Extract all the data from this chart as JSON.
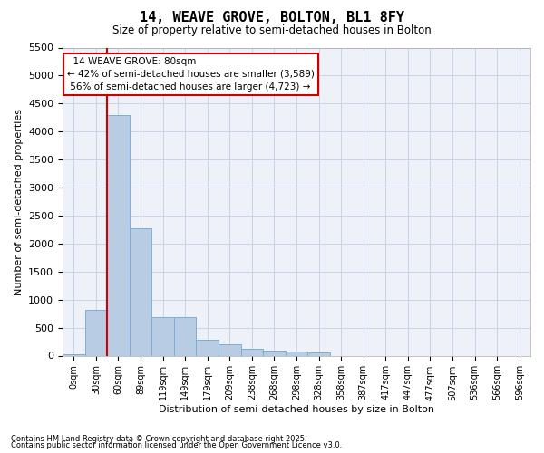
{
  "title": "14, WEAVE GROVE, BOLTON, BL1 8FY",
  "subtitle": "Size of property relative to semi-detached houses in Bolton",
  "xlabel": "Distribution of semi-detached houses by size in Bolton",
  "ylabel": "Number of semi-detached properties",
  "footnote1": "Contains HM Land Registry data © Crown copyright and database right 2025.",
  "footnote2": "Contains public sector information licensed under the Open Government Licence v3.0.",
  "property_label": "14 WEAVE GROVE: 80sqm",
  "pct_smaller": 42,
  "count_smaller": 3589,
  "pct_larger": 56,
  "count_larger": 4723,
  "bin_labels": [
    "0sqm",
    "30sqm",
    "60sqm",
    "89sqm",
    "119sqm",
    "149sqm",
    "179sqm",
    "209sqm",
    "238sqm",
    "268sqm",
    "298sqm",
    "328sqm",
    "358sqm",
    "387sqm",
    "417sqm",
    "447sqm",
    "477sqm",
    "507sqm",
    "536sqm",
    "566sqm",
    "596sqm"
  ],
  "bar_values": [
    30,
    820,
    4300,
    2270,
    690,
    680,
    290,
    200,
    120,
    90,
    70,
    50,
    0,
    0,
    0,
    0,
    0,
    0,
    0,
    0,
    0
  ],
  "bar_color": "#b8cce4",
  "bar_edge_color": "#7bafd4",
  "vline_color": "#cc0000",
  "vline_bin_index": 2,
  "annotation_box_color": "#cc0000",
  "grid_color": "#c8d4e8",
  "background_color": "#eef2f8",
  "ylim": [
    0,
    5500
  ],
  "yticks": [
    0,
    500,
    1000,
    1500,
    2000,
    2500,
    3000,
    3500,
    4000,
    4500,
    5000,
    5500
  ]
}
